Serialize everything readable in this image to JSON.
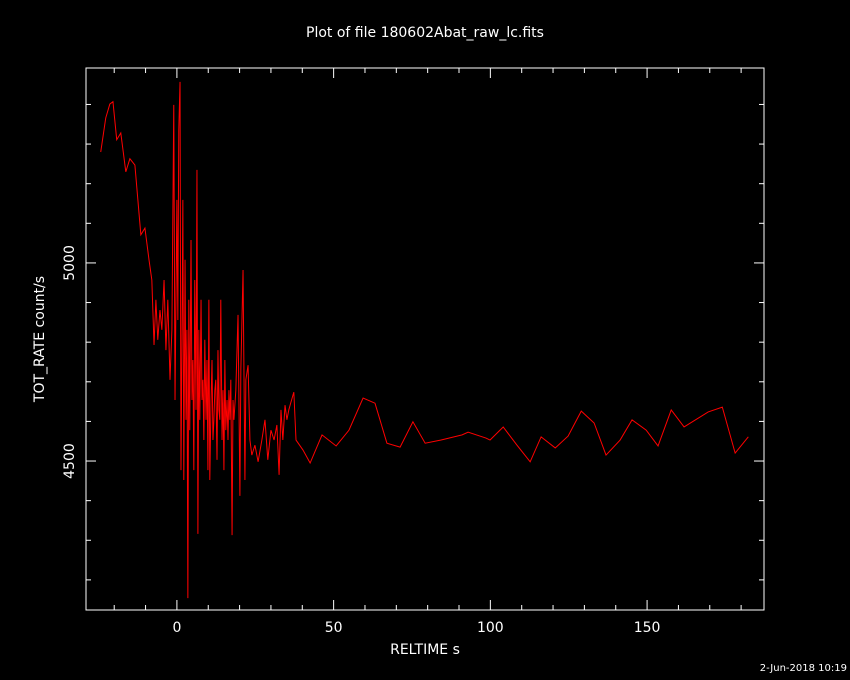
{
  "chart_data": {
    "type": "line",
    "title": "Plot of file 180602Abat_raw_lc.fits",
    "x_label": "RELTIME  s",
    "y_label": "TOT_RATE  count/s",
    "timestamp": "2-Jun-2018 10:19",
    "color": "#ff0000",
    "xlim": [
      -29,
      187.3
    ],
    "ylim": [
      4124,
      5492
    ],
    "xticks": [
      0,
      50,
      100,
      150
    ],
    "yticks": [
      4500,
      5000
    ],
    "xminor_ticks": [
      -20,
      -10,
      10,
      20,
      30,
      40,
      60,
      70,
      80,
      90,
      110,
      120,
      130,
      140,
      160,
      170,
      180
    ],
    "yminor_ticks": [
      4200,
      4300,
      4400,
      4600,
      4700,
      4800,
      4900,
      5100,
      5200,
      5300,
      5400
    ],
    "x": [
      -24.3,
      -22.7,
      -21.4,
      -20.4,
      -19.2,
      -17.9,
      -16.3,
      -15.0,
      -13.4,
      -11.5,
      -10.2,
      -8.9,
      -8.0,
      -7.3,
      -6.7,
      -6.1,
      -5.4,
      -4.8,
      -4.1,
      -3.5,
      -2.9,
      -2.2,
      -1.6,
      -1.0,
      -0.6,
      -0.3,
      0,
      0.3,
      0.6,
      1.0,
      1.3,
      1.6,
      1.9,
      2.2,
      2.6,
      2.9,
      3.2,
      3.5,
      3.8,
      4.1,
      4.5,
      4.8,
      5.1,
      5.4,
      5.7,
      6.1,
      6.4,
      6.7,
      7.0,
      7.3,
      7.7,
      8.0,
      8.3,
      8.6,
      8.9,
      9.3,
      9.6,
      9.9,
      10.2,
      10.5,
      10.9,
      11.2,
      11.5,
      11.8,
      12.1,
      12.4,
      12.8,
      13.1,
      13.4,
      13.7,
      14.0,
      14.4,
      14.7,
      15.0,
      15.3,
      15.6,
      16.0,
      16.3,
      16.6,
      16.9,
      17.2,
      17.6,
      17.9,
      18.2,
      18.8,
      19.5,
      20.1,
      20.4,
      21.1,
      21.7,
      22.0,
      22.7,
      23.3,
      23.9,
      24.9,
      25.9,
      27.1,
      28.1,
      29.0,
      30.0,
      31.0,
      31.9,
      32.6,
      33.2,
      33.8,
      34.5,
      35.1,
      35.7,
      36.4,
      37.3,
      38.0,
      40.2,
      42.5,
      46.3,
      50.8,
      54.9,
      59.4,
      63.2,
      67.0,
      71.2,
      75.3,
      79.2,
      84.3,
      91.0,
      92.9,
      98.6,
      99.9,
      104.1,
      108.5,
      112.7,
      116.2,
      120.7,
      124.8,
      129.0,
      133.1,
      136.9,
      141.4,
      145.2,
      149.7,
      153.5,
      157.7,
      161.8,
      169.5,
      174.0,
      178.1,
      182.3
    ],
    "values": [
      5280,
      5366,
      5401,
      5407,
      5311,
      5328,
      5230,
      5263,
      5247,
      5071,
      5088,
      5008,
      4957,
      4793,
      4907,
      4806,
      4881,
      4831,
      4957,
      4780,
      4907,
      4705,
      4831,
      5399,
      4654,
      4907,
      5159,
      4856,
      5336,
      5457,
      4477,
      4780,
      5159,
      4452,
      5008,
      4604,
      4831,
      4154,
      4907,
      4578,
      5058,
      4654,
      4755,
      4477,
      4957,
      4629,
      5235,
      4316,
      4831,
      4604,
      4907,
      4654,
      4705,
      4553,
      4806,
      4604,
      4755,
      4477,
      4907,
      4452,
      4654,
      4755,
      4553,
      4604,
      4679,
      4705,
      4503,
      4780,
      4629,
      4604,
      4907,
      4553,
      4679,
      4477,
      4755,
      4578,
      4654,
      4553,
      4679,
      4604,
      4705,
      4313,
      4654,
      4604,
      4679,
      4869,
      4412,
      4730,
      4982,
      4452,
      4705,
      4742,
      4553,
      4515,
      4540,
      4498,
      4553,
      4604,
      4503,
      4578,
      4553,
      4591,
      4465,
      4629,
      4553,
      4641,
      4604,
      4629,
      4649,
      4674,
      4553,
      4528,
      4495,
      4566,
      4538,
      4578,
      4659,
      4646,
      4545,
      4535,
      4599,
      4545,
      4553,
      4566,
      4573,
      4558,
      4553,
      4586,
      4540,
      4498,
      4561,
      4533,
      4563,
      4626,
      4596,
      4515,
      4553,
      4604,
      4578,
      4538,
      4629,
      4586,
      4624,
      4636,
      4520,
      4561
    ]
  }
}
